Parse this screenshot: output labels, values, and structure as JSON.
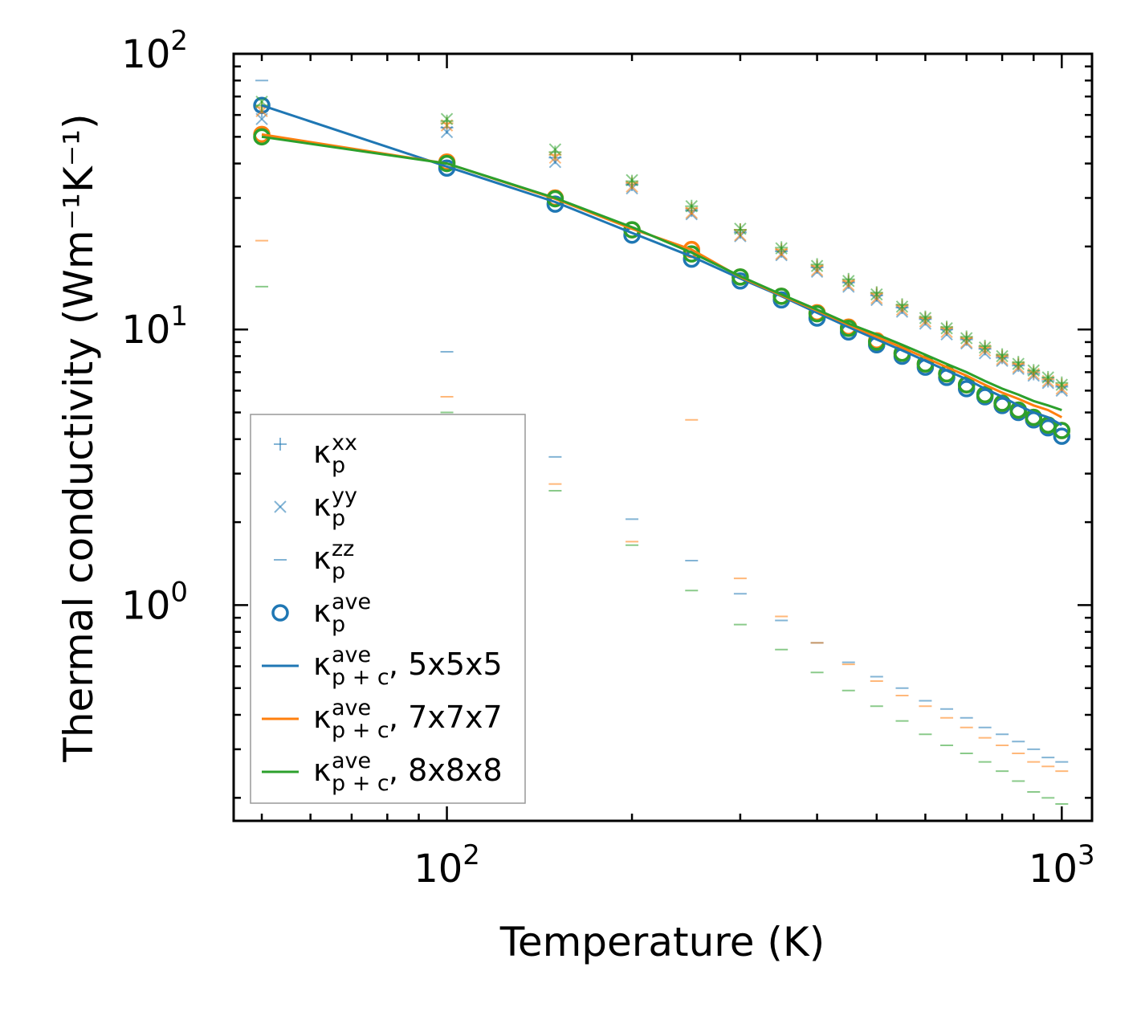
{
  "chart_data": {
    "type": "scatter",
    "title": "",
    "xlabel": "Temperature (K)",
    "ylabel": "Thermal conductivity (Wm⁻¹K⁻¹)",
    "xscale": "log",
    "yscale": "log",
    "xlim": [
      45,
      1120
    ],
    "ylim": [
      0.165,
      100
    ],
    "x_ticks": [
      {
        "base": "10",
        "exp": "2",
        "value": 100
      },
      {
        "base": "10",
        "exp": "3",
        "value": 1000
      }
    ],
    "y_ticks": [
      {
        "base": "10",
        "exp": "0",
        "value": 1
      },
      {
        "base": "10",
        "exp": "1",
        "value": 10
      },
      {
        "base": "10",
        "exp": "2",
        "value": 100
      }
    ],
    "grid": false,
    "legend_position": "lower-left",
    "colors": {
      "5x5x5": "#1f77b4",
      "7x7x7": "#ff7f0e",
      "8x8x8": "#2ca02c"
    },
    "temperatures": [
      50,
      100,
      150,
      200,
      250,
      300,
      350,
      400,
      450,
      500,
      550,
      600,
      650,
      700,
      750,
      800,
      850,
      900,
      950,
      1000
    ],
    "series": [
      {
        "name": "5x5x5",
        "color": "#1f77b4",
        "kxx": [
          62.0,
          54.0,
          42.0,
          33.5,
          27.0,
          22.5,
          19.2,
          16.8,
          14.8,
          13.3,
          12.0,
          10.9,
          10.0,
          9.2,
          8.5,
          7.9,
          7.4,
          6.9,
          6.5,
          6.2
        ],
        "kyy": [
          58.0,
          52.0,
          40.5,
          32.5,
          26.2,
          21.8,
          18.6,
          16.2,
          14.3,
          12.8,
          11.6,
          10.5,
          9.6,
          8.9,
          8.2,
          7.7,
          7.2,
          6.8,
          6.4,
          6.0
        ],
        "kzz": [
          80.0,
          8.3,
          3.45,
          2.05,
          1.45,
          1.1,
          0.88,
          0.73,
          0.62,
          0.55,
          0.5,
          0.45,
          0.42,
          0.39,
          0.36,
          0.34,
          0.32,
          0.3,
          0.28,
          0.27
        ],
        "kave": [
          65.0,
          38.5,
          28.5,
          22.0,
          18.0,
          15.0,
          12.8,
          11.0,
          9.8,
          8.8,
          8.0,
          7.3,
          6.7,
          6.1,
          5.7,
          5.3,
          5.0,
          4.7,
          4.4,
          4.1
        ],
        "kave_pc": [
          65.0,
          39.0,
          29.0,
          22.4,
          18.4,
          15.3,
          13.2,
          11.5,
          10.2,
          9.2,
          8.4,
          7.7,
          7.1,
          6.6,
          6.1,
          5.7,
          5.3,
          5.0,
          4.8,
          4.5
        ]
      },
      {
        "name": "7x7x7",
        "color": "#ff7f0e",
        "kxx": [
          64.0,
          56.0,
          43.0,
          34.0,
          27.5,
          23.0,
          19.5,
          17.0,
          15.0,
          13.5,
          12.2,
          11.0,
          10.1,
          9.3,
          8.6,
          8.0,
          7.5,
          7.0,
          6.6,
          6.3
        ],
        "kyy": [
          62.0,
          55.0,
          42.0,
          33.0,
          26.5,
          22.0,
          18.8,
          16.4,
          14.5,
          13.0,
          11.8,
          10.7,
          9.8,
          9.0,
          8.4,
          7.8,
          7.3,
          6.9,
          6.5,
          6.1
        ],
        "kzz": [
          21.0,
          5.7,
          2.75,
          1.7,
          4.7,
          1.25,
          0.91,
          0.73,
          0.61,
          0.53,
          0.47,
          0.43,
          0.39,
          0.36,
          0.33,
          0.31,
          0.29,
          0.27,
          0.26,
          0.25
        ],
        "kave": [
          51.0,
          40.5,
          30.0,
          23.0,
          19.5,
          15.5,
          13.2,
          11.5,
          10.2,
          9.1,
          8.2,
          7.5,
          6.9,
          6.3,
          5.8,
          5.4,
          5.1,
          4.8,
          4.5,
          4.3
        ],
        "kave_pc": [
          51.0,
          40.0,
          29.8,
          23.2,
          19.5,
          15.5,
          13.3,
          11.7,
          10.4,
          9.4,
          8.6,
          7.9,
          7.3,
          6.8,
          6.3,
          5.9,
          5.6,
          5.3,
          5.1,
          4.8
        ]
      },
      {
        "name": "8x8x8",
        "color": "#2ca02c",
        "kxx": [
          65.0,
          57.0,
          44.0,
          34.5,
          28.0,
          23.0,
          19.8,
          17.2,
          15.2,
          13.6,
          12.3,
          11.1,
          10.2,
          9.4,
          8.7,
          8.1,
          7.6,
          7.1,
          6.7,
          6.4
        ],
        "kyy": [
          67.0,
          58.0,
          45.0,
          34.8,
          28.0,
          23.2,
          19.7,
          17.0,
          15.0,
          13.4,
          12.1,
          11.0,
          10.1,
          9.3,
          8.6,
          8.0,
          7.5,
          7.1,
          6.7,
          6.3
        ],
        "kzz": [
          14.3,
          5.0,
          2.6,
          1.65,
          1.13,
          0.85,
          0.69,
          0.57,
          0.49,
          0.43,
          0.38,
          0.34,
          0.31,
          0.29,
          0.27,
          0.25,
          0.23,
          0.21,
          0.2,
          0.19
        ],
        "kave": [
          50.0,
          40.0,
          29.8,
          23.0,
          18.8,
          15.5,
          13.2,
          11.4,
          10.1,
          9.0,
          8.2,
          7.5,
          6.9,
          6.3,
          5.8,
          5.4,
          5.1,
          4.8,
          4.5,
          4.3
        ],
        "kave_pc": [
          50.0,
          40.0,
          30.0,
          23.5,
          19.0,
          15.6,
          13.4,
          11.8,
          10.5,
          9.6,
          8.8,
          8.1,
          7.5,
          7.0,
          6.5,
          6.1,
          5.8,
          5.5,
          5.3,
          5.1
        ]
      }
    ],
    "legend": [
      {
        "marker": "plus",
        "symbol": "κ",
        "sub": "p",
        "sup": "xx",
        "suffix": ""
      },
      {
        "marker": "x",
        "symbol": "κ",
        "sub": "p",
        "sup": "yy",
        "suffix": ""
      },
      {
        "marker": "hline",
        "symbol": "κ",
        "sub": "p",
        "sup": "zz",
        "suffix": ""
      },
      {
        "marker": "circle",
        "symbol": "κ",
        "sub": "p",
        "sup": "ave",
        "suffix": ""
      },
      {
        "marker": "line",
        "series": "5x5x5",
        "symbol": "κ",
        "sub": "p + c",
        "sup": "ave",
        "suffix": ", 5x5x5"
      },
      {
        "marker": "line",
        "series": "7x7x7",
        "symbol": "κ",
        "sub": "p + c",
        "sup": "ave",
        "suffix": ", 7x7x7"
      },
      {
        "marker": "line",
        "series": "8x8x8",
        "symbol": "κ",
        "sub": "p + c",
        "sup": "ave",
        "suffix": ", 8x8x8"
      }
    ]
  }
}
